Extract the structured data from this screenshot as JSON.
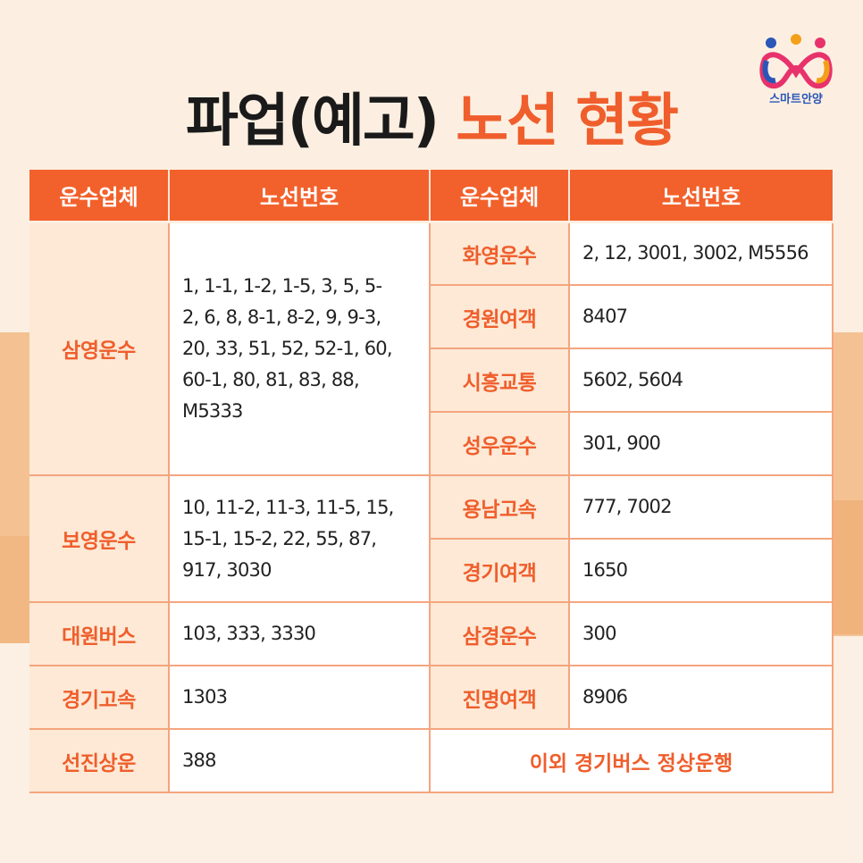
{
  "title": {
    "part1": "파업(예고)",
    "part2": "노선 현황"
  },
  "logo": {
    "text": "스마트안양"
  },
  "headers": [
    "운수업체",
    "노선번호",
    "운수업체",
    "노선번호"
  ],
  "left": [
    {
      "company": "삼영운수",
      "routes": "1, 1-1, 1-2, 1-5, 3, 5, 5-2, 6, 8, 8-1, 8-2, 9, 9-3, 20, 33, 51, 52, 52-1, 60, 60-1, 80, 81, 83, 88, M5333"
    },
    {
      "company": "보영운수",
      "routes": "10, 11-2, 11-3, 11-5, 15, 15-1, 15-2, 22, 55, 87, 917, 3030"
    },
    {
      "company": "대원버스",
      "routes": "103, 333, 3330"
    },
    {
      "company": "경기고속",
      "routes": "1303"
    },
    {
      "company": "선진상운",
      "routes": "388"
    }
  ],
  "right": [
    {
      "company": "화영운수",
      "routes": "2, 12, 3001, 3002, M5556"
    },
    {
      "company": "경원여객",
      "routes": "8407"
    },
    {
      "company": "시흥교통",
      "routes": "5602, 5604"
    },
    {
      "company": "성우운수",
      "routes": "301, 900"
    },
    {
      "company": "용남고속",
      "routes": "777, 7002"
    },
    {
      "company": "경기여객",
      "routes": "1650"
    },
    {
      "company": "삼경운수",
      "routes": "300"
    },
    {
      "company": "진명여객",
      "routes": "8906"
    }
  ],
  "note": "이외 경기버스 정상운행",
  "colors": {
    "accent": "#ef5e2c",
    "header_bg": "#f2612b",
    "company_bg": "#fde9d6",
    "page_bg": "#fcefe1"
  }
}
